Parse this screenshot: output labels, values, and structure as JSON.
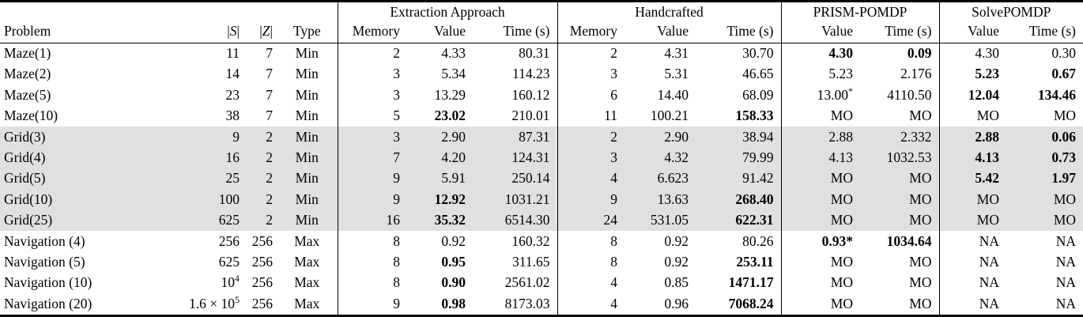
{
  "colors": {
    "shade": "#e0e0e0",
    "rule": "#000000",
    "text": "#000000",
    "background": "#ffffff"
  },
  "table": {
    "groups": [
      {
        "label": "",
        "cols": [
          {
            "t": "Problem"
          },
          {
            "t": "|S|",
            "math": true
          },
          {
            "t": "|Z|",
            "math": true
          },
          {
            "t": "Type"
          }
        ]
      },
      {
        "label": "Extraction Approach",
        "cols": [
          {
            "t": "Memory"
          },
          {
            "t": "Value"
          },
          {
            "t": "Time (s)"
          }
        ]
      },
      {
        "label": "Handcrafted",
        "cols": [
          {
            "t": "Memory"
          },
          {
            "t": "Value"
          },
          {
            "t": "Time (s)"
          }
        ]
      },
      {
        "label": "PRISM-POMDP",
        "cols": [
          {
            "t": "Value"
          },
          {
            "t": "Time (s)"
          }
        ]
      },
      {
        "label": "SolvePOMDP",
        "cols": [
          {
            "t": "Value"
          },
          {
            "t": "Time (s)"
          }
        ]
      }
    ],
    "rows": [
      {
        "shaded": false,
        "cells": [
          "Maze(1)",
          "11",
          "7",
          "Min",
          "2",
          "4.33",
          "80.31",
          "2",
          "4.31",
          "30.70",
          {
            "t": "4.30",
            "b": true
          },
          {
            "t": "0.09",
            "b": true
          },
          "4.30",
          "0.30"
        ]
      },
      {
        "shaded": false,
        "cells": [
          "Maze(2)",
          "14",
          "7",
          "Min",
          "3",
          "5.34",
          "114.23",
          "3",
          "5.31",
          "46.65",
          "5.23",
          "2.176",
          {
            "t": "5.23",
            "b": true
          },
          {
            "t": "0.67",
            "b": true
          }
        ]
      },
      {
        "shaded": false,
        "cells": [
          "Maze(5)",
          "23",
          "7",
          "Min",
          "3",
          "13.29",
          "160.12",
          "6",
          "14.40",
          "68.09",
          {
            "t": "13.00",
            "sup": "*"
          },
          "4110.50",
          {
            "t": "12.04",
            "b": true
          },
          {
            "t": "134.46",
            "b": true
          }
        ]
      },
      {
        "shaded": false,
        "cells": [
          "Maze(10)",
          "38",
          "7",
          "Min",
          "5",
          {
            "t": "23.02",
            "b": true
          },
          "210.01",
          "11",
          "100.21",
          {
            "t": "158.33",
            "b": true
          },
          "MO",
          "MO",
          "MO",
          "MO"
        ]
      },
      {
        "shaded": true,
        "cells": [
          "Grid(3)",
          "9",
          "2",
          "Min",
          "3",
          "2.90",
          "87.31",
          "2",
          "2.90",
          "38.94",
          "2.88",
          "2.332",
          {
            "t": "2.88",
            "b": true
          },
          {
            "t": "0.06",
            "b": true
          }
        ]
      },
      {
        "shaded": true,
        "cells": [
          "Grid(4)",
          "16",
          "2",
          "Min",
          "7",
          "4.20",
          "124.31",
          "3",
          "4.32",
          "79.99",
          "4.13",
          "1032.53",
          {
            "t": "4.13",
            "b": true
          },
          {
            "t": "0.73",
            "b": true
          }
        ]
      },
      {
        "shaded": true,
        "cells": [
          "Grid(5)",
          "25",
          "2",
          "Min",
          "9",
          "5.91",
          "250.14",
          "4",
          "6.623",
          "91.42",
          "MO",
          "MO",
          {
            "t": "5.42",
            "b": true
          },
          {
            "t": "1.97",
            "b": true
          }
        ]
      },
      {
        "shaded": true,
        "cells": [
          "Grid(10)",
          "100",
          "2",
          "Min",
          "9",
          {
            "t": "12.92",
            "b": true
          },
          "1031.21",
          "9",
          "13.63",
          {
            "t": "268.40",
            "b": true
          },
          "MO",
          "MO",
          "MO",
          "MO"
        ]
      },
      {
        "shaded": true,
        "cells": [
          "Grid(25)",
          "625",
          "2",
          "Min",
          "16",
          {
            "t": "35.32",
            "b": true
          },
          "6514.30",
          "24",
          "531.05",
          {
            "t": "622.31",
            "b": true
          },
          "MO",
          "MO",
          "MO",
          "MO"
        ]
      },
      {
        "shaded": false,
        "cells": [
          "Navigation (4)",
          "256",
          "256",
          "Max",
          "8",
          "0.92",
          "160.32",
          "8",
          "0.92",
          "80.26",
          {
            "t": "0.93*",
            "b": true
          },
          {
            "t": "1034.64",
            "b": true
          },
          "NA",
          "NA"
        ]
      },
      {
        "shaded": false,
        "cells": [
          "Navigation (5)",
          "625",
          "256",
          "Max",
          "8",
          {
            "t": "0.95",
            "b": true
          },
          "311.65",
          "8",
          "0.92",
          {
            "t": "253.11",
            "b": true
          },
          "MO",
          "MO",
          "NA",
          "NA"
        ]
      },
      {
        "shaded": false,
        "cells": [
          "Navigation (10)",
          {
            "t": "10",
            "sup": "4"
          },
          "256",
          "Max",
          "8",
          {
            "t": "0.90",
            "b": true
          },
          "2561.02",
          "4",
          "0.85",
          {
            "t": "1471.17",
            "b": true
          },
          "MO",
          "MO",
          "NA",
          "NA"
        ]
      },
      {
        "shaded": false,
        "cells": [
          "Navigation (20)",
          {
            "t": "1.6 × 10",
            "sup": "5"
          },
          "256",
          "Max",
          "9",
          {
            "t": "0.98",
            "b": true
          },
          "8173.03",
          "4",
          "0.96",
          {
            "t": "7068.24",
            "b": true
          },
          "MO",
          "MO",
          "NA",
          "NA"
        ]
      }
    ]
  }
}
